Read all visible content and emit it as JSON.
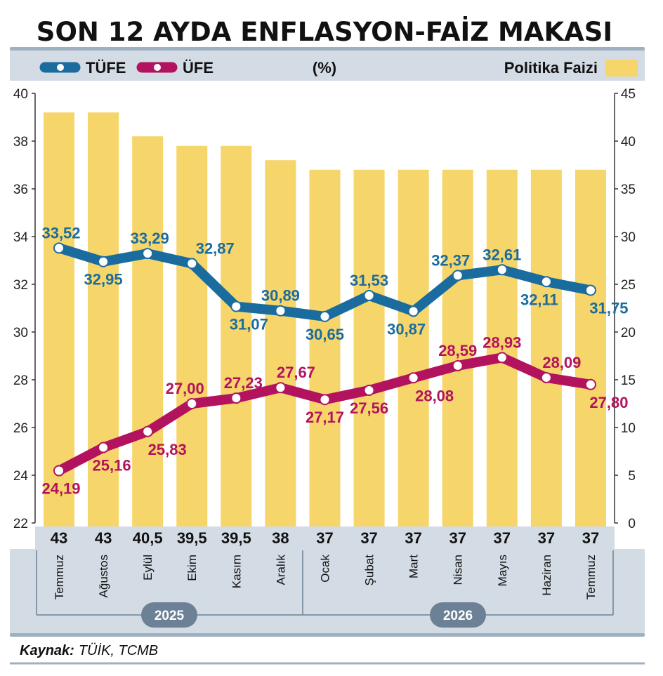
{
  "header": {
    "title": "SON 12 AYDA ENFLASYON-FAİZ MAKASI"
  },
  "legend": {
    "tufe_label": "TÜFE",
    "ufe_label": "ÜFE",
    "unit": "(%)",
    "policy_label": "Politika Faizi"
  },
  "source": {
    "label": "Kaynak:",
    "value": "TÜİK, TCMB"
  },
  "chart_data": {
    "type": "bar",
    "title": "SON 12 AYDA ENFLASYON-FAİZ MAKASI",
    "unit": "(%)",
    "categories": [
      "Temmuz",
      "Ağustos",
      "Eylül",
      "Ekim",
      "Kasım",
      "Aralık",
      "Ocak",
      "Şubat",
      "Mart",
      "Nisan",
      "Mayıs",
      "Haziran",
      "Temmuz"
    ],
    "year_groups": [
      {
        "label": "2025",
        "start": 0,
        "end": 5
      },
      {
        "label": "2026",
        "start": 6,
        "end": 12
      }
    ],
    "y_left": {
      "min": 22,
      "max": 40,
      "ticks": [
        22,
        24,
        26,
        28,
        30,
        32,
        34,
        36,
        38,
        40
      ]
    },
    "y_right": {
      "min": 0,
      "max": 45,
      "ticks": [
        0,
        5,
        10,
        15,
        20,
        25,
        30,
        35,
        40,
        45
      ]
    },
    "series": [
      {
        "name": "Politika Faizi",
        "kind": "bar",
        "axis": "right",
        "color": "#f6d56a",
        "values": [
          43,
          43,
          40.5,
          39.5,
          39.5,
          38,
          37,
          37,
          37,
          37,
          37,
          37,
          37
        ],
        "value_labels": [
          "43",
          "43",
          "40,5",
          "39,5",
          "39,5",
          "38",
          "37",
          "37",
          "37",
          "37",
          "37",
          "37",
          "37"
        ]
      },
      {
        "name": "TÜFE",
        "kind": "line",
        "axis": "left",
        "color": "#1b6c9e",
        "values": [
          33.52,
          32.95,
          33.29,
          32.87,
          31.07,
          30.89,
          30.65,
          31.53,
          30.87,
          32.37,
          32.61,
          32.11,
          31.75
        ],
        "value_labels": [
          "33,52",
          "32,95",
          "33,29",
          "32,87",
          "31,07",
          "30,89",
          "30,65",
          "31,53",
          "30,87",
          "32,37",
          "32,61",
          "32,11",
          "31,75"
        ]
      },
      {
        "name": "ÜFE",
        "kind": "line",
        "axis": "left",
        "color": "#b3135e",
        "values": [
          24.19,
          25.16,
          25.83,
          27.0,
          27.23,
          27.67,
          27.17,
          27.56,
          28.08,
          28.59,
          28.93,
          28.09,
          27.8
        ],
        "value_labels": [
          "24,19",
          "25,16",
          "25,83",
          "27,00",
          "27,23",
          "27,67",
          "27,17",
          "27,56",
          "28,08",
          "28,59",
          "28,93",
          "28,09",
          "27,80"
        ]
      }
    ],
    "grid": false,
    "legend_position": "top"
  }
}
